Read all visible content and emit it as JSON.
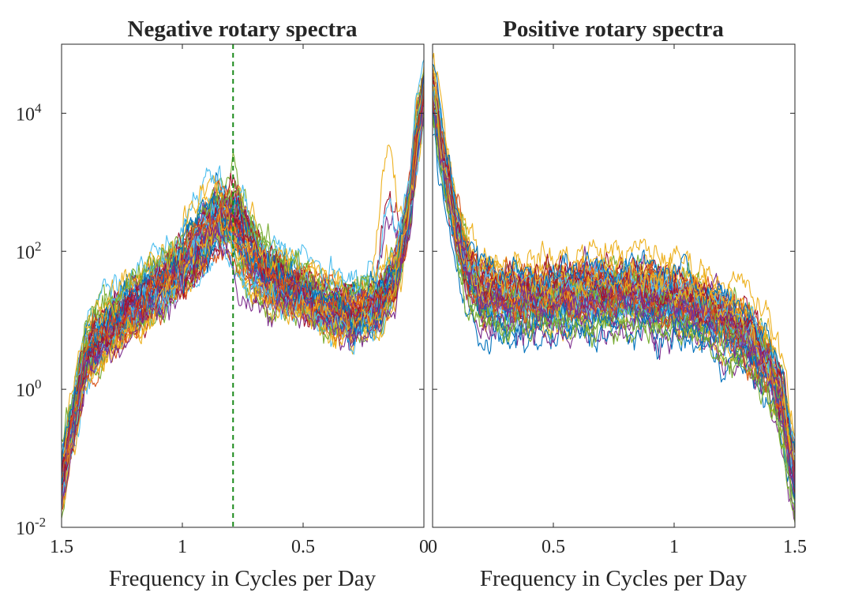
{
  "chart_data": [
    {
      "type": "line",
      "panel": "left",
      "title": "Negative rotary spectra",
      "xlabel": "Frequency in Cycles per Day",
      "ylabel": "",
      "x_reversed": true,
      "xlim": [
        0,
        1.5
      ],
      "ylim": [
        0.01,
        100000
      ],
      "yscale": "log",
      "xticks": [
        1.5,
        1,
        0.5,
        0
      ],
      "xtick_labels": [
        "1.5",
        "1",
        "0.5",
        "0"
      ],
      "yticks": [
        {
          "value": 0.01,
          "base": "10",
          "exp": "-2"
        },
        {
          "value": 1,
          "base": "10",
          "exp": "0"
        },
        {
          "value": 100,
          "base": "10",
          "exp": "2"
        },
        {
          "value": 10000,
          "base": "10",
          "exp": "4"
        }
      ],
      "reference_line": {
        "x": 0.79,
        "style": "dashed",
        "color": "#1a8a1a"
      },
      "series_count": 60,
      "representative_spectrum": {
        "x": [
          1.5,
          1.4,
          1.3,
          1.2,
          1.1,
          1.0,
          0.9,
          0.82,
          0.79,
          0.7,
          0.6,
          0.5,
          0.4,
          0.3,
          0.2,
          0.12,
          0.06,
          0.03,
          0.0
        ],
        "y": [
          0.04,
          3,
          8,
          15,
          30,
          60,
          200,
          450,
          300,
          60,
          35,
          25,
          15,
          12,
          15,
          40,
          400,
          4000,
          20000
        ]
      }
    },
    {
      "type": "line",
      "panel": "right",
      "title": "Positive rotary spectra",
      "xlabel": "Frequency in Cycles per Day",
      "ylabel": "",
      "x_reversed": false,
      "xlim": [
        0,
        1.5
      ],
      "ylim": [
        0.01,
        100000
      ],
      "yscale": "log",
      "xticks": [
        0,
        0.5,
        1,
        1.5
      ],
      "xtick_labels": [
        "0",
        "0.5",
        "1",
        "1.5"
      ],
      "series_count": 60,
      "representative_spectrum": {
        "x": [
          0.0,
          0.02,
          0.05,
          0.1,
          0.15,
          0.2,
          0.3,
          0.5,
          0.7,
          0.9,
          1.0,
          1.1,
          1.2,
          1.3,
          1.4,
          1.45,
          1.5
        ],
        "y": [
          20000,
          8000,
          1500,
          200,
          50,
          25,
          20,
          20,
          25,
          22,
          18,
          15,
          10,
          6,
          2,
          0.6,
          0.05
        ]
      }
    }
  ],
  "colors": [
    "#0072bd",
    "#d95319",
    "#edb120",
    "#7e2f8e",
    "#77ac30",
    "#4dbeee",
    "#a2142f"
  ]
}
